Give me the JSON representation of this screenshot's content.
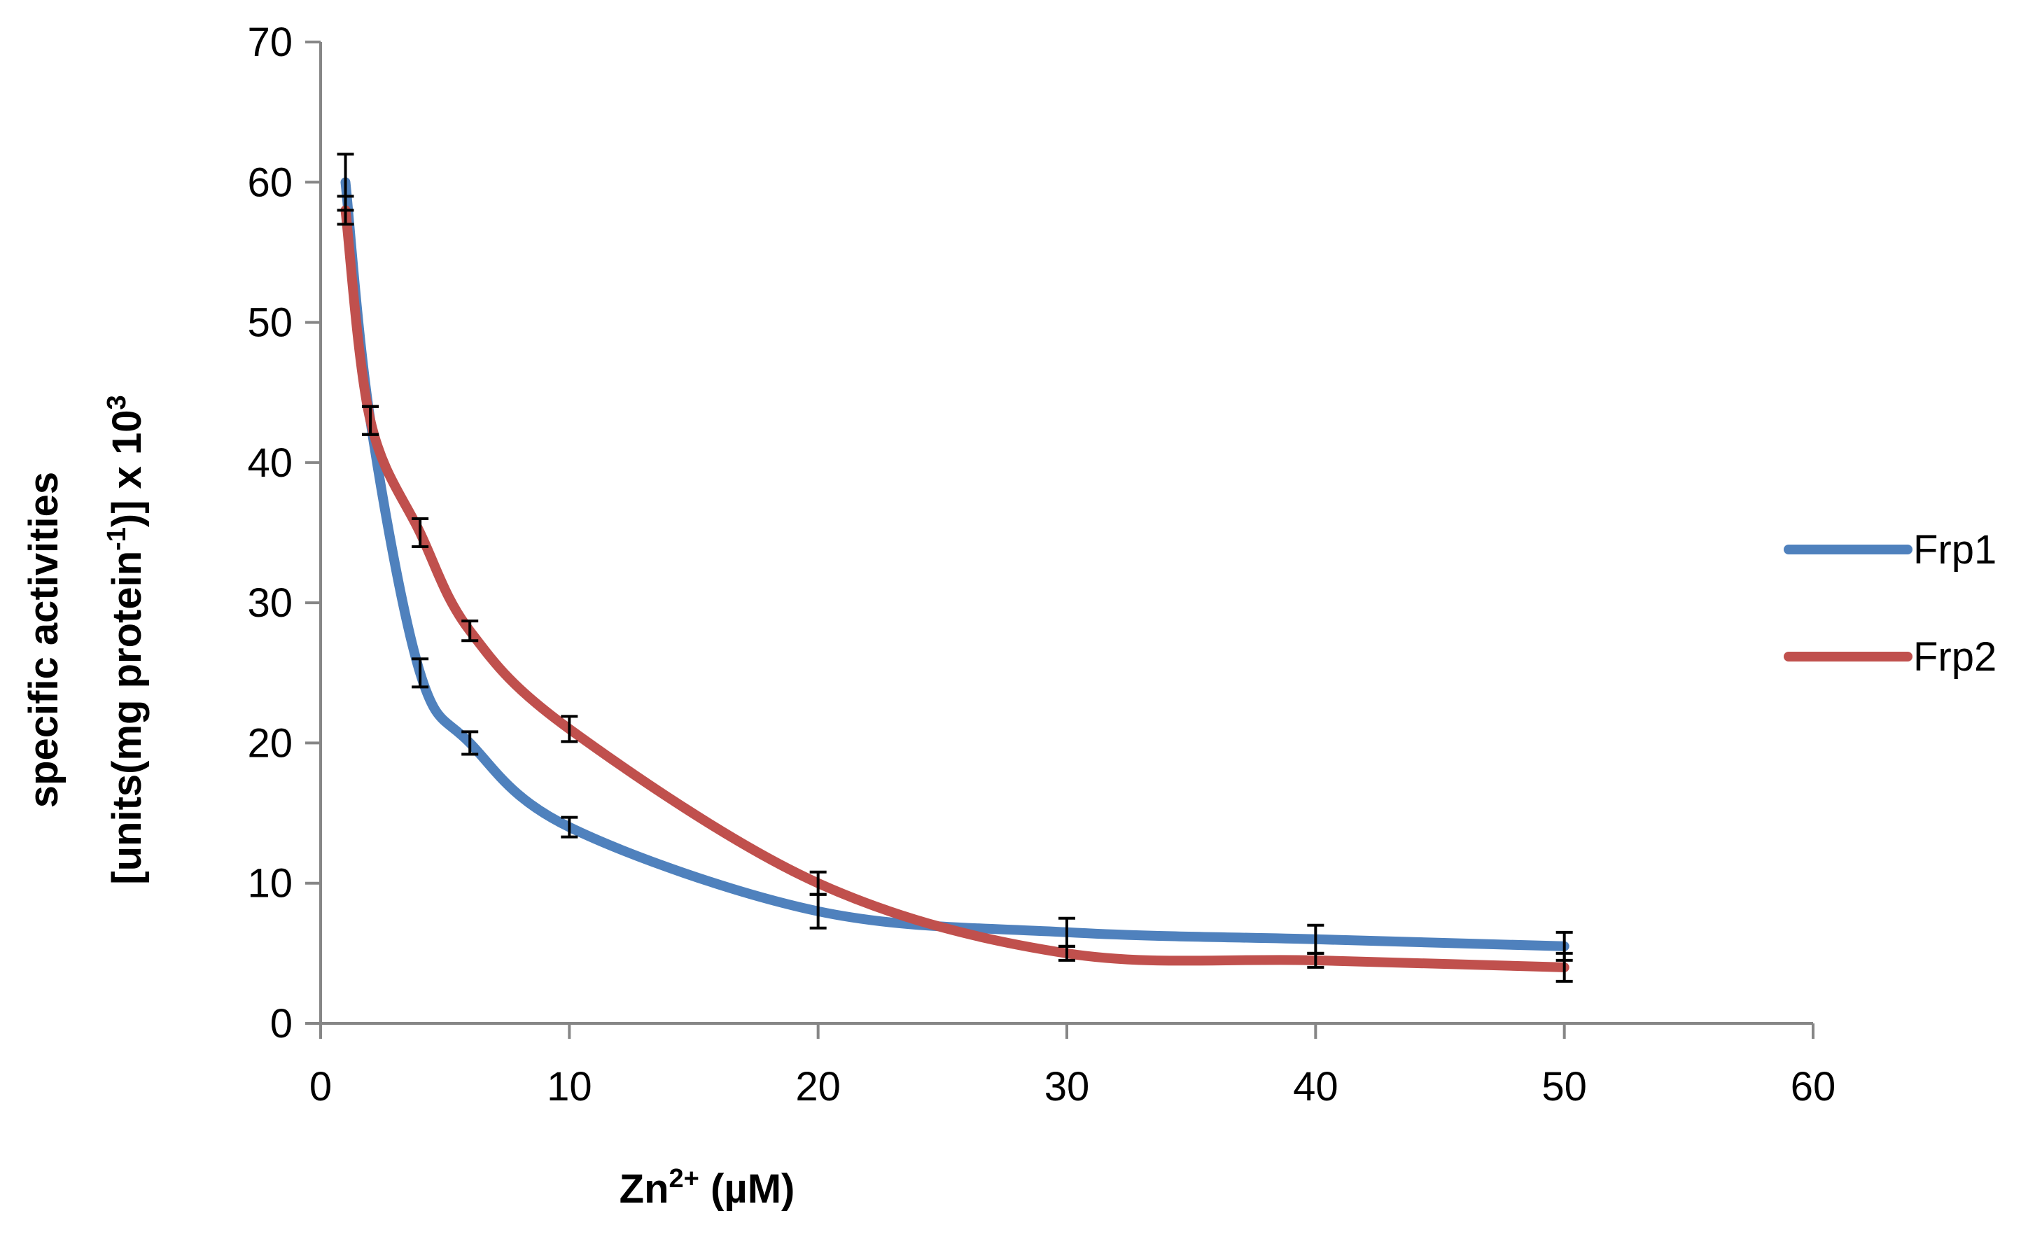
{
  "chart_data": {
    "type": "line",
    "title": "",
    "xlabel": {
      "base": "Zn",
      "sup": "2+",
      "rest": " (µM)"
    },
    "ylabel": {
      "line1": "specific activities",
      "line2_pre": "[units(mg protein",
      "line2_sup": "-1",
      "line2_post": ")] x 10",
      "line2_sup2": "3"
    },
    "xlim": [
      0,
      60
    ],
    "ylim": [
      0,
      70
    ],
    "x_ticks": [
      0,
      10,
      20,
      30,
      40,
      50,
      60
    ],
    "y_ticks": [
      0,
      10,
      20,
      30,
      40,
      50,
      60,
      70
    ],
    "x_tick_labels": [
      "0",
      "10",
      "20",
      "30",
      "40",
      "50",
      "60"
    ],
    "y_tick_labels": [
      "0",
      "10",
      "20",
      "30",
      "40",
      "50",
      "60",
      "70"
    ],
    "grid": false,
    "legend_position": "right",
    "smooth": true,
    "series": [
      {
        "name": "Frp1",
        "color": "#4f81bd",
        "x": [
          1,
          2,
          4,
          6,
          10,
          20,
          30,
          40,
          50
        ],
        "y": [
          60,
          43,
          25,
          20,
          14,
          8,
          6.5,
          6,
          5.5
        ],
        "err": [
          2,
          1,
          1,
          0.8,
          0.7,
          1.2,
          1,
          1,
          1
        ]
      },
      {
        "name": "Frp2",
        "color": "#c0504d",
        "x": [
          1,
          2,
          4,
          6,
          10,
          20,
          30,
          40,
          50
        ],
        "y": [
          58,
          43,
          35,
          28,
          21,
          10,
          5,
          4.5,
          4
        ],
        "err": [
          1,
          1,
          1,
          0.7,
          0.9,
          0.8,
          0.5,
          0.5,
          1
        ]
      }
    ]
  }
}
